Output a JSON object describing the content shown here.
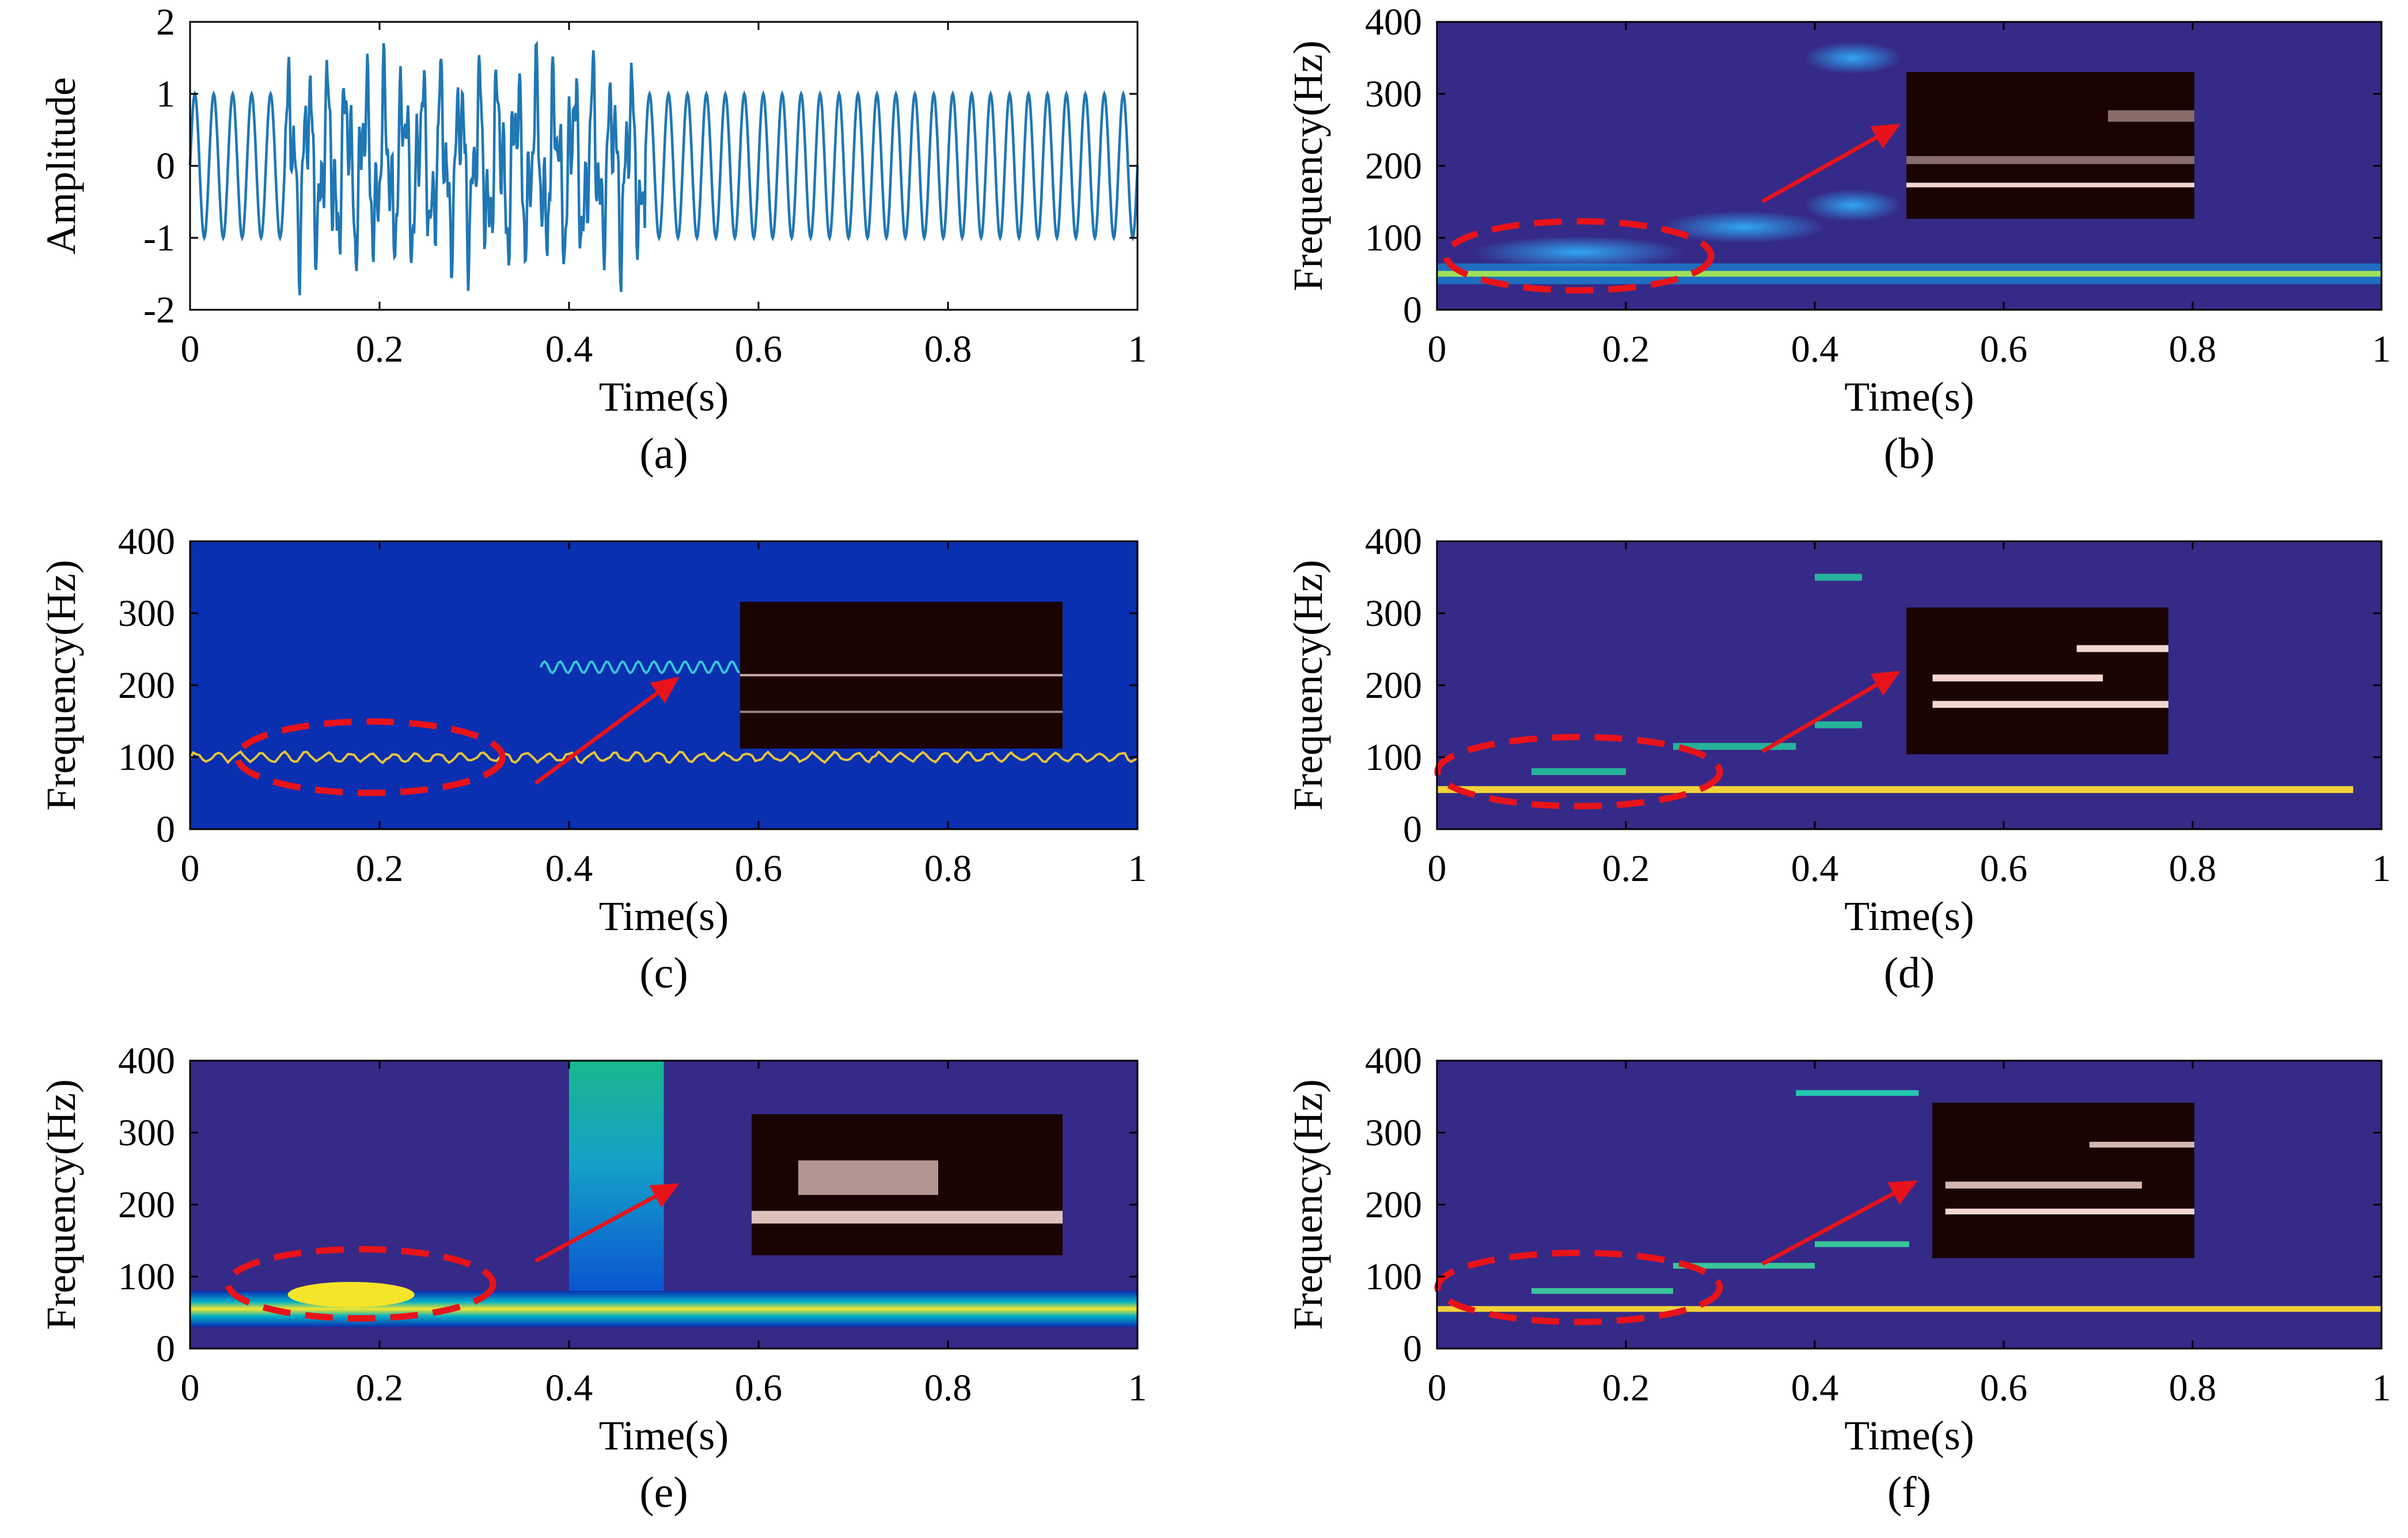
{
  "figure": {
    "colors": {
      "waveform": "#1f77b4",
      "background_map": "#352a87",
      "jet_background": "#0a2fb0",
      "annotation": "#e8131a",
      "inset_background": "#1a0303",
      "inset_line": "#f4d6cf"
    }
  },
  "chart_data": [
    {
      "id": "a",
      "caption": "(a)",
      "type": "line",
      "xlabel": "Time(s)",
      "ylabel": "Amplitude",
      "xlim": [
        0,
        1
      ],
      "ylim": [
        -2,
        2
      ],
      "xticks": [
        "0",
        "0.2",
        "0.4",
        "0.6",
        "0.8",
        "1"
      ],
      "yticks": [
        "2",
        "1",
        "0",
        "-1",
        "-2"
      ],
      "signal": {
        "stable_frequency_hz": 50,
        "stable_amplitude": 1.0,
        "disturbance_interval_s": [
          0.1,
          0.48
        ],
        "disturbance_peak_amplitude": 1.8
      }
    },
    {
      "id": "b",
      "caption": "(b)",
      "type": "heatmap",
      "xlabel": "Time(s)",
      "ylabel": "Frequency(Hz)",
      "xlim": [
        0,
        1
      ],
      "ylim": [
        0,
        400
      ],
      "xticks": [
        "0",
        "0.2",
        "0.4",
        "0.6",
        "0.8",
        "1"
      ],
      "yticks": [
        "400",
        "300",
        "200",
        "100",
        "0"
      ],
      "components": [
        {
          "t": [
            0,
            1
          ],
          "f": 50
        },
        {
          "t": [
            0.05,
            0.25
          ],
          "f": 80
        },
        {
          "t": [
            0.25,
            0.4
          ],
          "f": 115
        },
        {
          "t": [
            0.4,
            0.48
          ],
          "f": 145
        },
        {
          "t": [
            0.4,
            0.48
          ],
          "f": 350
        }
      ]
    },
    {
      "id": "c",
      "caption": "(c)",
      "type": "heatmap",
      "xlabel": "Time(s)",
      "ylabel": "Frequency(Hz)",
      "xlim": [
        0,
        1
      ],
      "ylim": [
        0,
        400
      ],
      "xticks": [
        "0",
        "0.2",
        "0.4",
        "0.6",
        "0.8",
        "1"
      ],
      "yticks": [
        "400",
        "300",
        "200",
        "100",
        "0"
      ],
      "ridges": [
        {
          "t": [
            0,
            1
          ],
          "f": 100
        },
        {
          "t": [
            0.37,
            0.58
          ],
          "f": 225
        }
      ]
    },
    {
      "id": "d",
      "caption": "(d)",
      "type": "heatmap",
      "xlabel": "Time(s)",
      "ylabel": "Frequency(Hz)",
      "xlim": [
        0,
        1
      ],
      "ylim": [
        0,
        400
      ],
      "xticks": [
        "0",
        "0.2",
        "0.4",
        "0.6",
        "0.8",
        "1"
      ],
      "yticks": [
        "400",
        "300",
        "200",
        "100",
        "0"
      ],
      "components": [
        {
          "t": [
            0,
            0.97
          ],
          "f": 55
        },
        {
          "t": [
            0.1,
            0.2
          ],
          "f": 80
        },
        {
          "t": [
            0.25,
            0.38
          ],
          "f": 115
        },
        {
          "t": [
            0.4,
            0.45
          ],
          "f": 145
        },
        {
          "t": [
            0.4,
            0.45
          ],
          "f": 350
        }
      ]
    },
    {
      "id": "e",
      "caption": "(e)",
      "type": "heatmap",
      "xlabel": "Time(s)",
      "ylabel": "Frequency(Hz)",
      "xlim": [
        0,
        1
      ],
      "ylim": [
        0,
        400
      ],
      "xticks": [
        "0",
        "0.2",
        "0.4",
        "0.6",
        "0.8",
        "1"
      ],
      "yticks": [
        "400",
        "300",
        "200",
        "100",
        "0"
      ],
      "components": [
        {
          "t": [
            0,
            1
          ],
          "f": 55
        },
        {
          "t": [
            0.1,
            0.25
          ],
          "f": 75
        },
        {
          "t": [
            0.4,
            0.5
          ],
          "f": 350
        }
      ]
    },
    {
      "id": "f",
      "caption": "(f)",
      "type": "heatmap",
      "xlabel": "Time(s)",
      "ylabel": "Frequency(Hz)",
      "xlim": [
        0,
        1
      ],
      "ylim": [
        0,
        400
      ],
      "xticks": [
        "0",
        "0.2",
        "0.4",
        "0.6",
        "0.8",
        "1"
      ],
      "yticks": [
        "400",
        "300",
        "200",
        "100",
        "0"
      ],
      "components": [
        {
          "t": [
            0,
            1
          ],
          "f": 55
        },
        {
          "t": [
            0.1,
            0.25
          ],
          "f": 80
        },
        {
          "t": [
            0.25,
            0.4
          ],
          "f": 115
        },
        {
          "t": [
            0.4,
            0.5
          ],
          "f": 145
        },
        {
          "t": [
            0.38,
            0.51
          ],
          "f": 355
        }
      ]
    }
  ]
}
